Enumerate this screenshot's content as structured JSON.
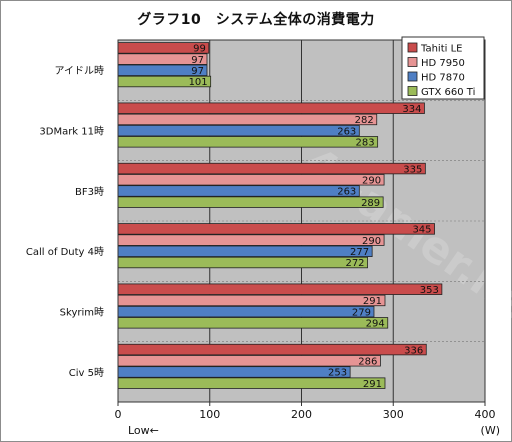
{
  "chart_data": {
    "type": "bar",
    "orientation": "horizontal",
    "title": "グラフ10　システム全体の消費電力",
    "categories": [
      "アイドル時",
      "3DMark 11時",
      "BF3時",
      "Call of Duty 4時",
      "Skyrim時",
      "Civ 5時"
    ],
    "series": [
      {
        "name": "Tahiti LE",
        "color": "#c94c4c",
        "values": [
          99,
          334,
          335,
          345,
          353,
          336
        ]
      },
      {
        "name": "HD 7950",
        "color": "#e69494",
        "values": [
          97,
          282,
          290,
          290,
          291,
          286
        ]
      },
      {
        "name": "HD 7870",
        "color": "#4f7fc4",
        "values": [
          97,
          263,
          263,
          277,
          279,
          253
        ]
      },
      {
        "name": "GTX 660 Ti",
        "color": "#9bbb59",
        "values": [
          101,
          283,
          289,
          272,
          294,
          291
        ]
      }
    ],
    "xlim": [
      0,
      400
    ],
    "xticks": [
      0,
      100,
      200,
      300,
      400
    ],
    "xunit": "(W)",
    "low_label": "Low←",
    "grid": true,
    "legend_position": "top-right",
    "plot_background": "#c0c0c0"
  }
}
